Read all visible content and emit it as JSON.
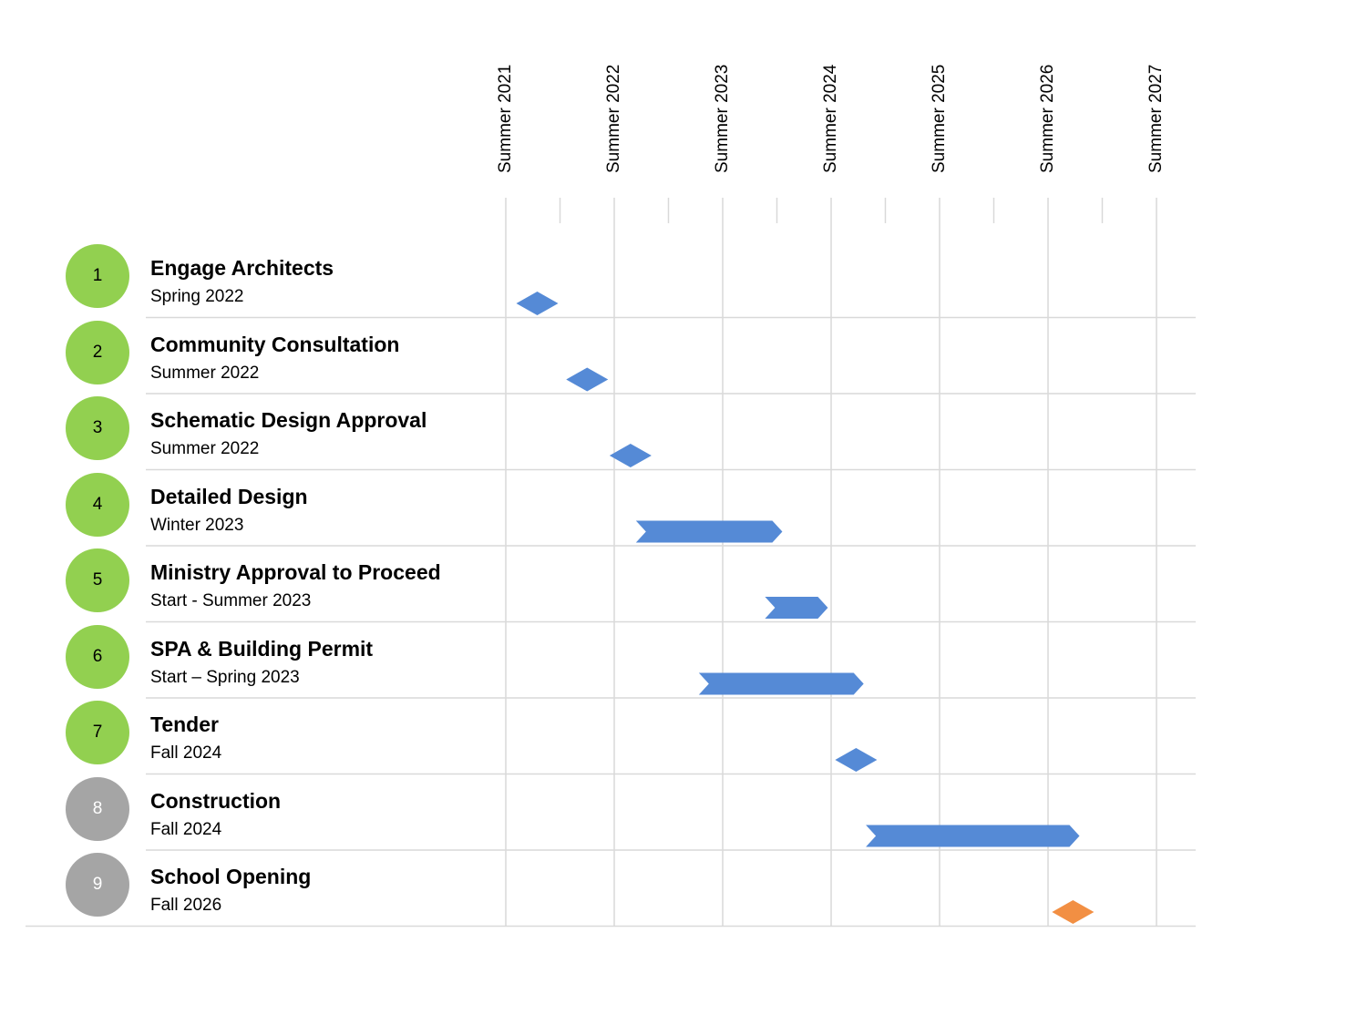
{
  "chart_data": {
    "type": "gantt",
    "title": "",
    "x_ticks": [
      {
        "label": "Summer 2021",
        "value": 2021.5
      },
      {
        "label": "Summer 2022",
        "value": 2022.5
      },
      {
        "label": "Summer 2023",
        "value": 2023.5
      },
      {
        "label": "Summer 2024",
        "value": 2024.5
      },
      {
        "label": "Summer 2025",
        "value": 2025.5
      },
      {
        "label": "Summer 2026",
        "value": 2026.5
      },
      {
        "label": "Summer 2027",
        "value": 2027.5
      }
    ],
    "xlim": [
      2021.5,
      2027.5
    ],
    "grid": true,
    "colors": {
      "active": "#92d050",
      "future": "#a5a5a5",
      "bar": "#558ad6",
      "highlight": "#f28f43"
    },
    "tasks": [
      {
        "number": "1",
        "name": "Engage Architects",
        "date": "Spring 2022",
        "kind": "milestone",
        "at": 2021.79,
        "status": "active"
      },
      {
        "number": "2",
        "name": "Community Consultation",
        "date": "Summer 2022",
        "kind": "milestone",
        "at": 2022.25,
        "status": "active"
      },
      {
        "number": "3",
        "name": "Schematic Design Approval",
        "date": "Summer 2022",
        "kind": "milestone",
        "at": 2022.65,
        "status": "active"
      },
      {
        "number": "4",
        "name": "Detailed Design",
        "date": "Winter 2023",
        "kind": "bar",
        "start": 2022.7,
        "end": 2024.05,
        "status": "active"
      },
      {
        "number": "5",
        "name": "Ministry Approval to Proceed",
        "date": "Start - Summer 2023",
        "kind": "bar",
        "start": 2023.89,
        "end": 2024.47,
        "status": "active"
      },
      {
        "number": "6",
        "name": "SPA & Building Permit",
        "date": "Start – Spring 2023",
        "kind": "bar",
        "start": 2023.28,
        "end": 2024.8,
        "status": "active"
      },
      {
        "number": "7",
        "name": "Tender",
        "date": "Fall 2024",
        "kind": "milestone",
        "at": 2024.73,
        "status": "active"
      },
      {
        "number": "8",
        "name": "Construction",
        "date": "Fall 2024",
        "kind": "bar",
        "start": 2024.82,
        "end": 2026.79,
        "status": "future"
      },
      {
        "number": "9",
        "name": "School Opening",
        "date": "Fall 2026",
        "kind": "milestone",
        "at": 2026.73,
        "status": "future",
        "highlight": true
      }
    ]
  }
}
